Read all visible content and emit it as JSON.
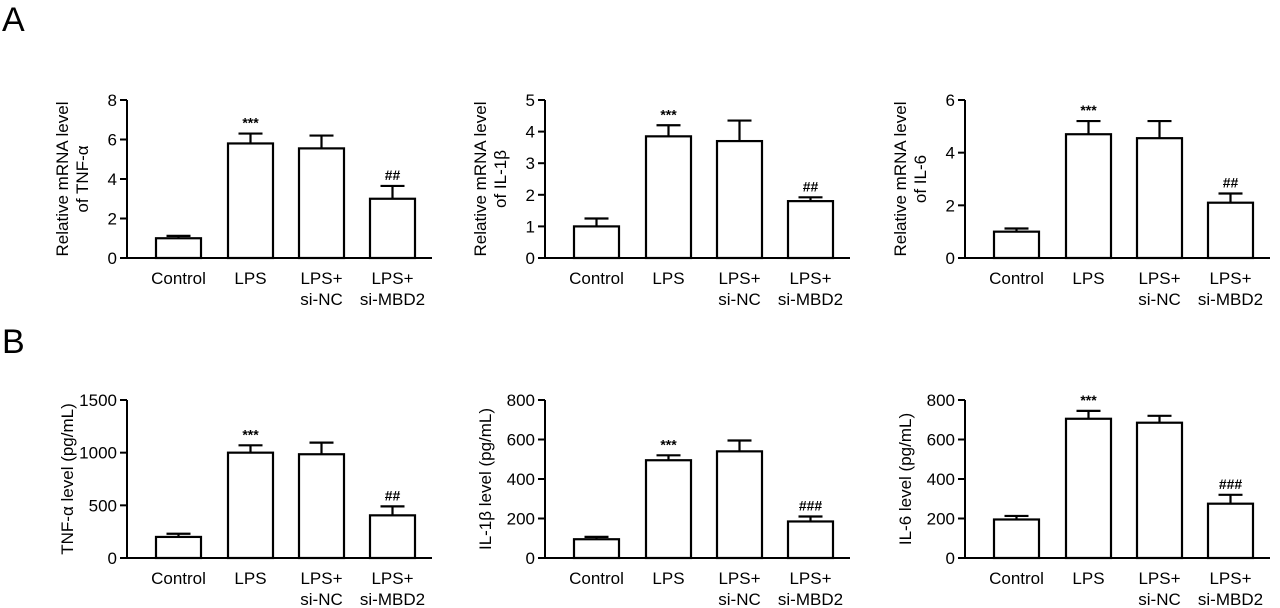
{
  "panels": [
    {
      "label": "A"
    },
    {
      "label": "B"
    }
  ],
  "chart_data": [
    {
      "type": "bar",
      "panel": "A",
      "categories": [
        "Control",
        "LPS",
        "LPS+\nsi-NC",
        "LPS+\nsi-MBD2"
      ],
      "values": [
        1.0,
        5.8,
        5.55,
        3.0
      ],
      "errors": [
        0.12,
        0.5,
        0.65,
        0.65
      ],
      "annotations": [
        "",
        "***",
        "",
        "##"
      ],
      "ylabel": "Relative mRNA level\nof TNF-α",
      "ylim": [
        0,
        8
      ],
      "yticks": [
        0,
        2,
        4,
        6,
        8
      ],
      "ytick_labels": [
        "0",
        "2",
        "4",
        "6",
        "8"
      ]
    },
    {
      "type": "bar",
      "panel": "A",
      "categories": [
        "Control",
        "LPS",
        "LPS+\nsi-NC",
        "LPS+\nsi-MBD2"
      ],
      "values": [
        1.0,
        3.85,
        3.7,
        1.8
      ],
      "errors": [
        0.25,
        0.35,
        0.65,
        0.12
      ],
      "annotations": [
        "",
        "***",
        "",
        "##"
      ],
      "ylabel": "Relative mRNA level\nof IL-1β",
      "ylim": [
        0,
        5
      ],
      "yticks": [
        0,
        1,
        2,
        3,
        4,
        5
      ],
      "ytick_labels": [
        "0",
        "1",
        "2",
        "3",
        "4",
        "5"
      ]
    },
    {
      "type": "bar",
      "panel": "A",
      "categories": [
        "Control",
        "LPS",
        "LPS+\nsi-NC",
        "LPS+\nsi-MBD2"
      ],
      "values": [
        1.0,
        4.7,
        4.55,
        2.1
      ],
      "errors": [
        0.12,
        0.5,
        0.65,
        0.35
      ],
      "annotations": [
        "",
        "***",
        "",
        "##"
      ],
      "ylabel": "Relative mRNA level\nof IL-6",
      "ylim": [
        0,
        6
      ],
      "yticks": [
        0,
        2,
        4,
        6
      ],
      "ytick_labels": [
        "0",
        "2",
        "4",
        "6"
      ]
    },
    {
      "type": "bar",
      "panel": "B",
      "categories": [
        "Control",
        "LPS",
        "LPS+\nsi-NC",
        "LPS+\nsi-MBD2"
      ],
      "values": [
        200,
        1000,
        985,
        405
      ],
      "errors": [
        30,
        70,
        110,
        85
      ],
      "annotations": [
        "",
        "***",
        "",
        "##"
      ],
      "ylabel": "TNF-α level (pg/mL)",
      "ylim": [
        0,
        1500
      ],
      "yticks": [
        0,
        500,
        1000,
        1500
      ],
      "ytick_labels": [
        "0",
        "500",
        "1000",
        "1500"
      ]
    },
    {
      "type": "bar",
      "panel": "B",
      "categories": [
        "Control",
        "LPS",
        "LPS+\nsi-NC",
        "LPS+\nsi-MBD2"
      ],
      "values": [
        95,
        495,
        540,
        185
      ],
      "errors": [
        12,
        25,
        55,
        25
      ],
      "annotations": [
        "",
        "***",
        "",
        "###"
      ],
      "ylabel": "IL-1β level (pg/mL)",
      "ylim": [
        0,
        800
      ],
      "yticks": [
        0,
        200,
        400,
        600,
        800
      ],
      "ytick_labels": [
        "0",
        "200",
        "400",
        "600",
        "800"
      ]
    },
    {
      "type": "bar",
      "panel": "B",
      "categories": [
        "Control",
        "LPS",
        "LPS+\nsi-NC",
        "LPS+\nsi-MBD2"
      ],
      "values": [
        195,
        705,
        685,
        275
      ],
      "errors": [
        18,
        40,
        35,
        45
      ],
      "annotations": [
        "",
        "***",
        "",
        "###"
      ],
      "ylabel": "IL-6 level (pg/mL)",
      "ylim": [
        0,
        800
      ],
      "yticks": [
        0,
        200,
        400,
        600,
        800
      ],
      "ytick_labels": [
        "0",
        "200",
        "400",
        "600",
        "800"
      ]
    }
  ]
}
